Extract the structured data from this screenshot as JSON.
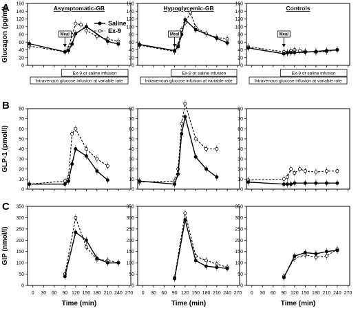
{
  "panel_letters": [
    "A",
    "B",
    "C"
  ],
  "column_titles": [
    "Asymptomatic-GB",
    "Hypoglycemic-GB",
    "Controls"
  ],
  "legend": {
    "saline": "Saline",
    "ex9": "Ex-9"
  },
  "annotations": {
    "meal": "Meal",
    "infusion": "Ex-9 or saline infusion",
    "glucose": "Intravenous glucose infusion at variable rate"
  },
  "colors": {
    "saline": "#000000",
    "ex9": "#555555"
  },
  "chart_data": [
    {
      "type": "line",
      "row": "A",
      "column": "Asymptomatic-GB",
      "title": "Asymptomatic-GB",
      "ylabel": "Glucagon (pg/ml)",
      "xlabel": "",
      "ylim": [
        0,
        160
      ],
      "yticks": [
        0,
        20,
        40,
        60,
        80,
        100,
        120,
        140,
        160
      ],
      "series": [
        {
          "name": "Saline",
          "x": [
            -10,
            90,
            100,
            110,
            120,
            150,
            210,
            240
          ],
          "y": [
            56,
            35,
            38,
            55,
            82,
            100,
            62,
            55
          ]
        },
        {
          "name": "Ex-9",
          "x": [
            -10,
            90,
            100,
            110,
            120,
            135,
            150,
            180,
            210,
            240
          ],
          "y": [
            50,
            35,
            45,
            78,
            108,
            105,
            90,
            75,
            68,
            62
          ]
        }
      ]
    },
    {
      "type": "line",
      "row": "A",
      "column": "Hypoglycemic-GB",
      "title": "Hypoglycemic-GB",
      "ylabel": "",
      "xlabel": "",
      "ylim": [
        0,
        160
      ],
      "yticks": [
        0,
        20,
        40,
        60,
        80,
        100,
        120,
        140,
        160
      ],
      "series": [
        {
          "name": "Saline",
          "x": [
            -10,
            90,
            100,
            110,
            120,
            150,
            210,
            240
          ],
          "y": [
            54,
            38,
            48,
            80,
            118,
            92,
            70,
            58
          ]
        },
        {
          "name": "Ex-9",
          "x": [
            -10,
            90,
            100,
            110,
            120,
            135,
            150,
            180,
            210,
            240
          ],
          "y": [
            52,
            36,
            52,
            92,
            110,
            137,
            98,
            82,
            72,
            68
          ]
        }
      ]
    },
    {
      "type": "line",
      "row": "A",
      "column": "Controls",
      "title": "Controls",
      "ylabel": "",
      "xlabel": "",
      "ylim": [
        0,
        160
      ],
      "yticks": [
        0,
        20,
        40,
        60,
        80,
        100,
        120,
        140,
        160
      ],
      "series": [
        {
          "name": "Saline",
          "x": [
            -10,
            90,
            100,
            110,
            120,
            150,
            180,
            210,
            240
          ],
          "y": [
            45,
            30,
            32,
            33,
            33,
            34,
            36,
            38,
            40
          ]
        },
        {
          "name": "Ex-9",
          "x": [
            -10,
            90,
            100,
            110,
            120,
            135,
            150,
            180,
            210,
            240
          ],
          "y": [
            48,
            35,
            33,
            38,
            40,
            38,
            36,
            34,
            36,
            40
          ]
        }
      ]
    },
    {
      "type": "line",
      "row": "B",
      "column": "Asymptomatic-GB",
      "title": "",
      "ylabel": "GLP-1 (pmol/l)",
      "xlabel": "",
      "ylim": [
        0,
        80
      ],
      "yticks": [
        0,
        10,
        20,
        30,
        40,
        50,
        60,
        70,
        80
      ],
      "series": [
        {
          "name": "Saline",
          "x": [
            -10,
            90,
            100,
            110,
            120,
            150,
            180,
            210
          ],
          "y": [
            5,
            5,
            8,
            25,
            40,
            33,
            18,
            9
          ]
        },
        {
          "name": "Ex-9",
          "x": [
            -10,
            90,
            100,
            110,
            120,
            150,
            180,
            210
          ],
          "y": [
            5,
            8,
            12,
            55,
            60,
            40,
            30,
            23
          ]
        }
      ]
    },
    {
      "type": "line",
      "row": "B",
      "column": "Hypoglycemic-GB",
      "title": "",
      "ylabel": "",
      "xlabel": "",
      "ylim": [
        0,
        80
      ],
      "yticks": [
        0,
        10,
        20,
        30,
        40,
        50,
        60,
        70,
        80
      ],
      "series": [
        {
          "name": "Saline",
          "x": [
            -10,
            90,
            100,
            110,
            120,
            150,
            180,
            210
          ],
          "y": [
            8,
            5,
            15,
            55,
            72,
            32,
            20,
            12
          ]
        },
        {
          "name": "Ex-9",
          "x": [
            -10,
            90,
            100,
            110,
            120,
            150,
            180,
            210
          ],
          "y": [
            7,
            8,
            20,
            65,
            85,
            50,
            40,
            40
          ]
        }
      ]
    },
    {
      "type": "line",
      "row": "B",
      "column": "Controls",
      "title": "",
      "ylabel": "",
      "xlabel": "",
      "ylim": [
        0,
        80
      ],
      "yticks": [
        0,
        10,
        20,
        30,
        40,
        50,
        60,
        70,
        80
      ],
      "series": [
        {
          "name": "Saline",
          "x": [
            -10,
            90,
            100,
            110,
            120,
            150,
            180,
            210,
            240
          ],
          "y": [
            7,
            5,
            5,
            5,
            6,
            6,
            6,
            6,
            6
          ]
        },
        {
          "name": "Ex-9",
          "x": [
            -10,
            90,
            100,
            110,
            120,
            135,
            150,
            180,
            210,
            240
          ],
          "y": [
            9,
            10,
            12,
            20,
            16,
            20,
            18,
            17,
            18,
            18
          ]
        }
      ]
    },
    {
      "type": "line",
      "row": "C",
      "column": "Asymptomatic-GB",
      "title": "",
      "ylabel": "GIP (nmol/l)",
      "xlabel": "Time (min)",
      "ylim": [
        0,
        350
      ],
      "yticks": [
        0,
        50,
        100,
        150,
        200,
        250,
        300,
        350
      ],
      "xticks": [
        0,
        30,
        60,
        90,
        120,
        150,
        180,
        210,
        240,
        270
      ],
      "series": [
        {
          "name": "Saline",
          "x": [
            90,
            120,
            150,
            180,
            210,
            240
          ],
          "y": [
            40,
            235,
            200,
            120,
            100,
            100
          ]
        },
        {
          "name": "Ex-9",
          "x": [
            90,
            120,
            150,
            180,
            210,
            240
          ],
          "y": [
            50,
            300,
            170,
            115,
            110,
            100
          ]
        }
      ]
    },
    {
      "type": "line",
      "row": "C",
      "column": "Hypoglycemic-GB",
      "title": "",
      "ylabel": "",
      "xlabel": "Time (min)",
      "ylim": [
        0,
        350
      ],
      "yticks": [
        0,
        50,
        100,
        150,
        200,
        250,
        300,
        350
      ],
      "xticks": [
        0,
        30,
        60,
        90,
        120,
        150,
        180,
        210,
        240,
        270
      ],
      "series": [
        {
          "name": "Saline",
          "x": [
            90,
            120,
            150,
            180,
            210,
            240
          ],
          "y": [
            30,
            290,
            110,
            85,
            80,
            75
          ]
        },
        {
          "name": "Ex-9",
          "x": [
            90,
            120,
            150,
            180,
            210,
            240
          ],
          "y": [
            35,
            320,
            130,
            110,
            95,
            80
          ]
        }
      ]
    },
    {
      "type": "line",
      "row": "C",
      "column": "Controls",
      "title": "",
      "ylabel": "",
      "xlabel": "Time (min)",
      "ylim": [
        0,
        350
      ],
      "yticks": [
        0,
        50,
        100,
        150,
        200,
        250,
        300,
        350
      ],
      "xticks": [
        0,
        30,
        60,
        90,
        120,
        150,
        180,
        210,
        240,
        270
      ],
      "series": [
        {
          "name": "Saline",
          "x": [
            90,
            120,
            150,
            180,
            210,
            240
          ],
          "y": [
            35,
            130,
            145,
            140,
            150,
            155
          ]
        },
        {
          "name": "Ex-9",
          "x": [
            90,
            120,
            150,
            180,
            210,
            240
          ],
          "y": [
            40,
            120,
            135,
            125,
            130,
            160
          ]
        }
      ]
    }
  ]
}
